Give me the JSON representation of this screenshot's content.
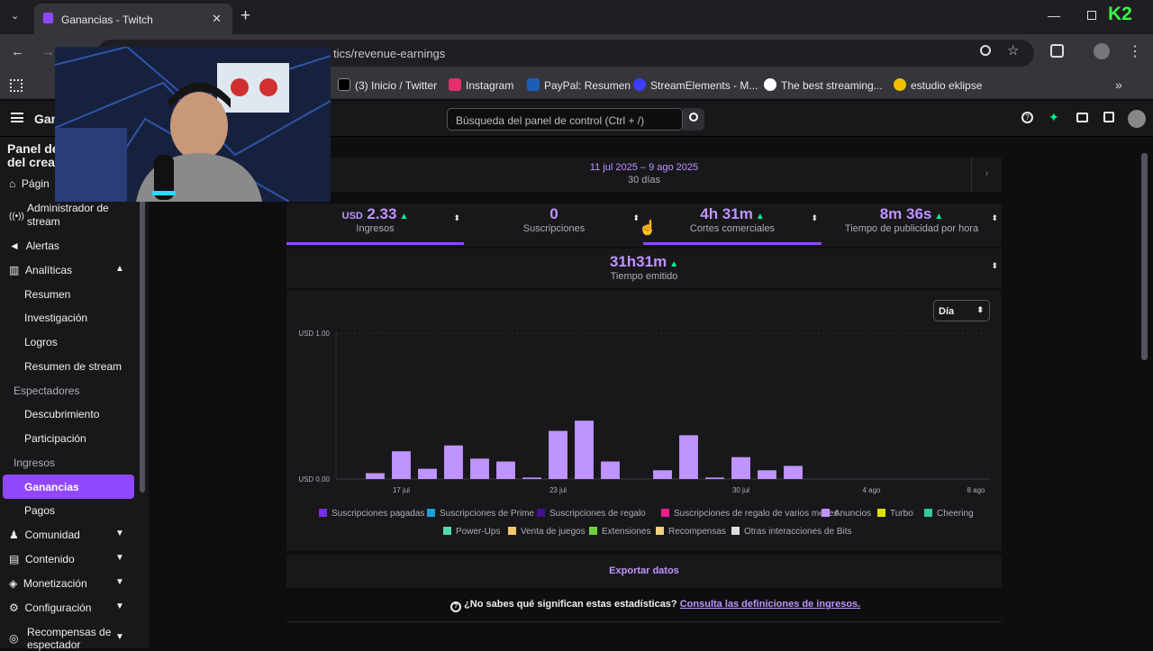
{
  "browser": {
    "tab_title": "Ganancias - Twitch",
    "new_tab": "+",
    "url": "tics/revenue-earnings",
    "bookmarks": [
      "(3) Inicio / Twitter",
      "Instagram",
      "PayPal: Resumen",
      "StreamElements - M...",
      "The best streaming...",
      "estudio eklipse"
    ]
  },
  "topnav": {
    "app_title": "Gan",
    "search_placeholder": "Búsqueda del panel de control (Ctrl + /)"
  },
  "sidebar": {
    "header_line1": "Panel de",
    "header_line2": "del crea",
    "items": {
      "pagina": "Págin",
      "stream_manager_1": "Administrador de",
      "stream_manager_2": "stream",
      "alertas": "Alertas",
      "analiticas": "Analíticas",
      "resumen": "Resumen",
      "investigacion": "Investigación",
      "logros": "Logros",
      "resumen_stream": "Resumen de stream",
      "espectadores": "Espectadores",
      "descubrimiento": "Descubrimiento",
      "participacion": "Participación",
      "ingresos": "Ingresos",
      "ganancias": "Ganancias",
      "pagos": "Pagos",
      "comunidad": "Comunidad",
      "contenido": "Contenido",
      "monetizacion": "Monetización",
      "configuracion": "Configuración",
      "recompensas_1": "Recompensas de",
      "recompensas_2": "espectador"
    }
  },
  "date_range": {
    "range": "11 jul 2025 – 9 ago 2025",
    "days": "30 días"
  },
  "stats": {
    "ingresos": {
      "currency": "USD",
      "value": "2.33",
      "label": "Ingresos"
    },
    "suscripciones": {
      "value": "0",
      "label": "Suscripciones"
    },
    "cortes": {
      "value": "4h 31m",
      "label": "Cortes comerciales"
    },
    "publicidad": {
      "value": "8m 36s",
      "label": "Tiempo de publicidad por hora"
    },
    "emitido": {
      "value": "31h31m",
      "label": "Tiempo emitido"
    }
  },
  "period_select": "Día",
  "chart_data": {
    "type": "bar",
    "ytick_top": "USD 1.00",
    "ytick_bottom": "USD 0.00",
    "ylim": [
      0,
      1.0
    ],
    "categories": [
      "15 jul",
      "16 jul",
      "17 jul",
      "18 jul",
      "19 jul",
      "20 jul",
      "21 jul",
      "22 jul",
      "23 jul",
      "24 jul",
      "25 jul",
      "26 jul",
      "27 jul",
      "28 jul",
      "29 jul",
      "30 jul",
      "31 jul",
      "1 ago",
      "2 ago",
      "3 ago",
      "4 ago",
      "5 ago",
      "6 ago",
      "7 ago",
      "8 ago"
    ],
    "x_tick_labels": {
      "2": "17 jul",
      "8": "23 jul",
      "15": "30 jul",
      "20": "4 ago",
      "24": "8 ago"
    },
    "series": [
      {
        "name": "Anuncios",
        "color": "#bf94ff",
        "values": [
          0,
          0.04,
          0.19,
          0.07,
          0.23,
          0.14,
          0.12,
          0.01,
          0.33,
          0.4,
          0.12,
          0,
          0.06,
          0.3,
          0.01,
          0.15,
          0.06,
          0.09,
          0,
          0,
          0,
          0,
          0,
          0,
          0
        ]
      }
    ],
    "legend": [
      {
        "name": "Suscripciones pagadas",
        "color": "#772ce8"
      },
      {
        "name": "Suscripciones de Prime",
        "color": "#1d9fd9"
      },
      {
        "name": "Suscripciones de regalo",
        "color": "#451093"
      },
      {
        "name": "Suscripciones de regalo de varios meses",
        "color": "#e91e8c"
      },
      {
        "name": "Anuncios",
        "color": "#bf94ff"
      },
      {
        "name": "Turbo",
        "color": "#e0e000"
      },
      {
        "name": "Cheering",
        "color": "#35c99b"
      },
      {
        "name": "Power-Ups",
        "color": "#57d8a8"
      },
      {
        "name": "Venta de juegos",
        "color": "#f5c66b"
      },
      {
        "name": "Extensiones",
        "color": "#6fcf3a"
      },
      {
        "name": "Recompensas",
        "color": "#f0d080"
      },
      {
        "name": "Otras interacciones de Bits",
        "color": "#dcdcdc"
      }
    ]
  },
  "export_label": "Exportar datos",
  "help": {
    "question": "¿No sabes qué significan estas estadísticas?",
    "link": "Consulta las definiciones de ingresos."
  }
}
